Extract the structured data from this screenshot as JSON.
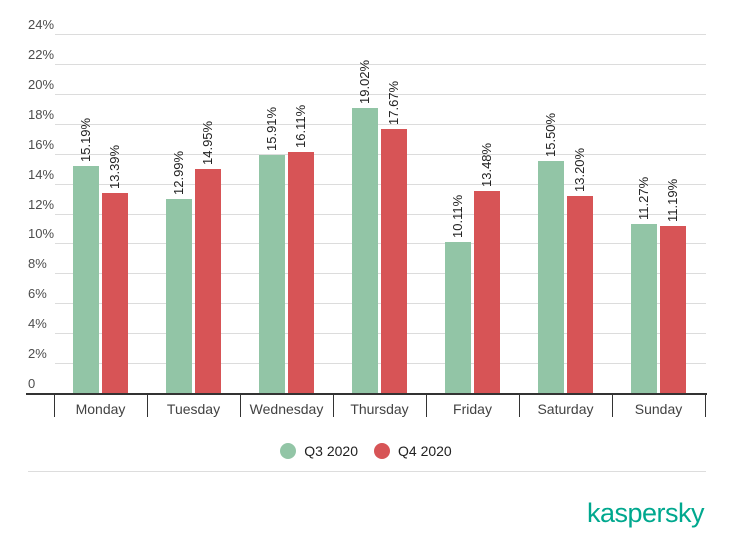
{
  "chart_data": {
    "type": "bar",
    "title": "",
    "categories": [
      "Monday",
      "Tuesday",
      "Wednesday",
      "Thursday",
      "Friday",
      "Saturday",
      "Sunday"
    ],
    "series": [
      {
        "name": "Q3 2020",
        "color": "#92c5a6",
        "values": [
          15.19,
          12.99,
          15.91,
          19.02,
          10.11,
          15.5,
          11.27
        ],
        "value_labels": [
          "15.19%",
          "12.99%",
          "15.91%",
          "19.02%",
          "10.11%",
          "15.50%",
          "11.27%"
        ]
      },
      {
        "name": "Q4 2020",
        "color": "#d75456",
        "values": [
          13.39,
          14.95,
          16.11,
          17.67,
          13.48,
          13.2,
          11.19
        ],
        "value_labels": [
          "13.39%",
          "14.95%",
          "16.11%",
          "17.67%",
          "13.48%",
          "13.20%",
          "11.19%"
        ]
      }
    ],
    "xlabel": "",
    "ylabel": "",
    "ylim": [
      0,
      24
    ],
    "ytick_step": 2,
    "ytick_labels": [
      "0",
      "2%",
      "4%",
      "6%",
      "8%",
      "10%",
      "12%",
      "14%",
      "16%",
      "18%",
      "20%",
      "22%",
      "24%"
    ],
    "grid": true,
    "value_labels_rotated": true,
    "legend_position": "bottom"
  },
  "legend": {
    "items": [
      {
        "label": "Q3 2020",
        "color": "#92c5a6"
      },
      {
        "label": "Q4 2020",
        "color": "#d75456"
      }
    ]
  },
  "branding": {
    "logo_text": "kaspersky",
    "logo_color": "#00a88e"
  },
  "colors": {
    "background": "#ffffff",
    "gridline": "#dcdcdc",
    "axis": "#333333",
    "y_label": "#4d4d4d",
    "day_label": "#424242",
    "value_label": "#1f1f1f",
    "divider": "#dddddd"
  }
}
